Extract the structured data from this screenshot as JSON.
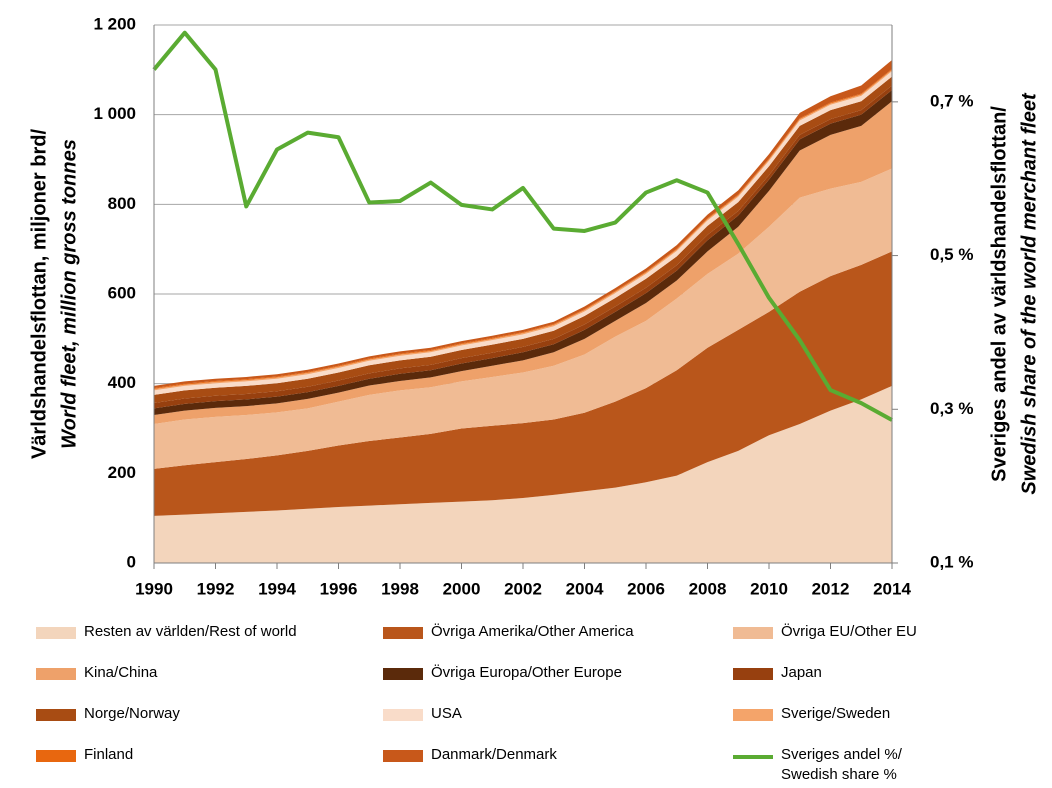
{
  "chart_data": {
    "type": "area",
    "y_title": [
      "Världshandelsflottan, miljoner brd/",
      "World fleet, million gross tonnes"
    ],
    "y2_title": [
      "Sveriges andel av världshandelsflottan/",
      "Swedish share of the world merchant fleet"
    ],
    "x": [
      1990,
      1991,
      1992,
      1993,
      1994,
      1995,
      1996,
      1997,
      1998,
      1999,
      2000,
      2001,
      2002,
      2003,
      2004,
      2005,
      2006,
      2007,
      2008,
      2009,
      2010,
      2011,
      2012,
      2013,
      2014
    ],
    "xlim": [
      1990,
      2014
    ],
    "xticks": [
      1990,
      1992,
      1994,
      1996,
      1998,
      2000,
      2002,
      2004,
      2006,
      2008,
      2010,
      2012,
      2014
    ],
    "ylim": [
      0,
      1200
    ],
    "yticks": [
      0,
      200,
      400,
      600,
      800,
      {
        "value": 1000,
        "label": "1 000"
      },
      {
        "value": 1200,
        "label": "1 200"
      }
    ],
    "y2lim": [
      0.1,
      0.8
    ],
    "y2ticks": [
      {
        "value": 0.1,
        "label": "0,1 %"
      },
      {
        "value": 0.3,
        "label": "0,3 %"
      },
      {
        "value": 0.5,
        "label": "0,5 %"
      },
      {
        "value": 0.7,
        "label": "0,7 %"
      }
    ],
    "grid": true,
    "series": [
      {
        "name": "Resten av världen/Rest of world",
        "color": "#f3d5bc",
        "values": [
          105,
          108,
          111,
          114,
          117,
          121,
          125,
          128,
          131,
          134,
          137,
          140,
          145,
          152,
          160,
          168,
          180,
          195,
          225,
          250,
          285,
          310,
          340,
          365,
          395
        ]
      },
      {
        "name": "Övriga Amerika/Other America",
        "color": "#b9561b",
        "values": [
          105,
          110,
          114,
          118,
          123,
          129,
          137,
          144,
          149,
          154,
          163,
          166,
          167,
          168,
          175,
          192,
          210,
          235,
          255,
          270,
          275,
          295,
          300,
          300,
          300
        ]
      },
      {
        "name": "Övriga EU/Other EU",
        "color": "#f0bb94",
        "values": [
          100,
          102,
          101,
          98,
          96,
          95,
          98,
          103,
          105,
          104,
          105,
          109,
          113,
          120,
          130,
          145,
          150,
          160,
          165,
          170,
          190,
          210,
          195,
          185,
          185
        ]
      },
      {
        "name": "Kina/China",
        "color": "#eea16a",
        "values": [
          20,
          20,
          20,
          20,
          20,
          21,
          20,
          21,
          21,
          22,
          23,
          25,
          27,
          30,
          35,
          35,
          40,
          40,
          50,
          60,
          80,
          105,
          120,
          125,
          150
        ]
      },
      {
        "name": "Övriga Europa/Other Europe",
        "color": "#5b2a0b",
        "values": [
          15,
          15,
          15,
          15,
          15,
          15,
          15,
          15,
          16,
          16,
          17,
          17,
          18,
          18,
          20,
          20,
          22,
          22,
          25,
          25,
          25,
          25,
          25,
          25,
          25
        ]
      },
      {
        "name": "Japan",
        "color": "#97400f",
        "values": [
          12,
          12,
          12,
          12,
          12,
          12,
          12,
          12,
          12,
          12,
          12,
          12,
          12,
          12,
          12,
          12,
          12,
          12,
          12,
          10,
          10,
          10,
          10,
          10,
          10
        ]
      },
      {
        "name": "Norge/Norway",
        "color": "#a84c13",
        "values": [
          18,
          18,
          18,
          18,
          18,
          18,
          18,
          18,
          18,
          18,
          18,
          18,
          18,
          18,
          19,
          19,
          20,
          20,
          20,
          20,
          20,
          20,
          20,
          20,
          20
        ]
      },
      {
        "name": "USA",
        "color": "#f9dcc9",
        "values": [
          10,
          10,
          10,
          10,
          10,
          10,
          10,
          10,
          10,
          10,
          10,
          10,
          10,
          10,
          10,
          11,
          11,
          12,
          12,
          12,
          12,
          12,
          12,
          12,
          12
        ]
      },
      {
        "name": "Sverige/Sweden",
        "color": "#f4a46a",
        "values": [
          3,
          3,
          3,
          3,
          3,
          3,
          3,
          3,
          3,
          3,
          3,
          3,
          3,
          3,
          3,
          3,
          3,
          3,
          3,
          3,
          3,
          3,
          3,
          3,
          3
        ]
      },
      {
        "name": "Finland",
        "color": "#e8670f",
        "values": [
          2,
          2,
          2,
          2,
          2,
          2,
          2,
          2,
          2,
          2,
          2,
          2,
          2,
          2,
          2,
          2,
          2,
          2,
          2,
          2,
          2,
          2,
          2,
          2,
          2
        ]
      },
      {
        "name": "Danmark/Denmark",
        "color": "#c8581a",
        "values": [
          5,
          5,
          5,
          5,
          5,
          5,
          5,
          5,
          5,
          5,
          5,
          5,
          5,
          5,
          6,
          6,
          7,
          8,
          8,
          9,
          10,
          12,
          14,
          18,
          20
        ]
      },
      {
        "name": "Sveriges andel %/\nSwedish share %",
        "color": "#5aab32",
        "type": "line",
        "axis": "y2",
        "values": [
          0.742,
          0.79,
          0.742,
          0.564,
          0.638,
          0.66,
          0.654,
          0.569,
          0.571,
          0.595,
          0.566,
          0.56,
          0.588,
          0.535,
          0.532,
          0.543,
          0.582,
          0.598,
          0.582,
          0.515,
          0.445,
          0.39,
          0.325,
          0.308,
          0.286
        ]
      }
    ]
  }
}
